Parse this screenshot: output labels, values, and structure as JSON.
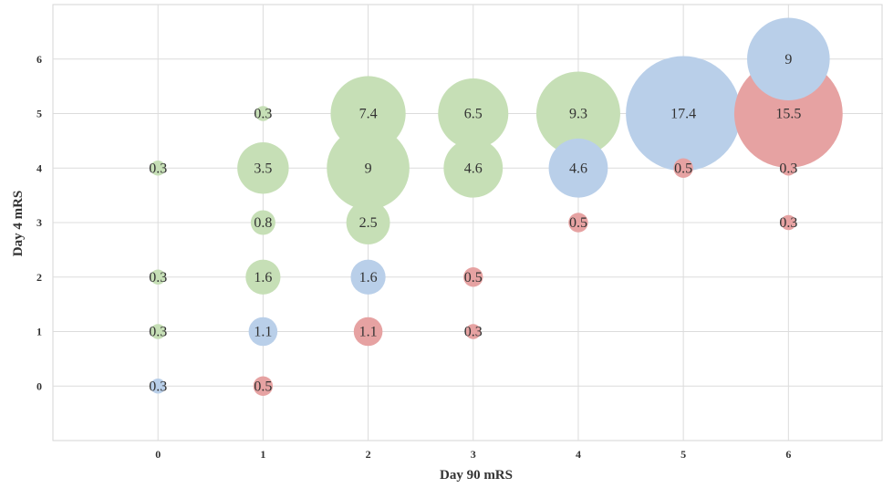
{
  "chart_data": {
    "type": "scatter",
    "subtype": "bubble",
    "title": "",
    "xlabel": "Day 90 mRS",
    "ylabel": "Day 4 mRS",
    "xlim": [
      -1,
      6.9
    ],
    "ylim": [
      -1,
      7
    ],
    "xticks": [
      "0",
      "1",
      "2",
      "3",
      "4",
      "5",
      "6"
    ],
    "yticks": [
      "0",
      "1",
      "2",
      "3",
      "4",
      "5",
      "6"
    ],
    "grid": true,
    "legend": "none",
    "colors": {
      "green": "#c6dfb6",
      "blue": "#b9cfe9",
      "red": "#e6a2a2"
    },
    "points": [
      {
        "x": 0,
        "y": 0,
        "value": 0.3,
        "label": "0.3",
        "color": "blue"
      },
      {
        "x": 0,
        "y": 1,
        "value": 0.3,
        "label": "0.3",
        "color": "green"
      },
      {
        "x": 0,
        "y": 2,
        "value": 0.3,
        "label": "0.3",
        "color": "green"
      },
      {
        "x": 0,
        "y": 4,
        "value": 0.3,
        "label": "0.3",
        "color": "green"
      },
      {
        "x": 1,
        "y": 0,
        "value": 0.5,
        "label": "0.5",
        "color": "red"
      },
      {
        "x": 1,
        "y": 1,
        "value": 1.1,
        "label": "1.1",
        "color": "blue"
      },
      {
        "x": 1,
        "y": 2,
        "value": 1.6,
        "label": "1.6",
        "color": "green"
      },
      {
        "x": 1,
        "y": 3,
        "value": 0.8,
        "label": "0.8",
        "color": "green"
      },
      {
        "x": 1,
        "y": 4,
        "value": 3.5,
        "label": "3.5",
        "color": "green"
      },
      {
        "x": 1,
        "y": 5,
        "value": 0.3,
        "label": "0.3",
        "color": "green"
      },
      {
        "x": 2,
        "y": 1,
        "value": 1.1,
        "label": "1.1",
        "color": "red"
      },
      {
        "x": 2,
        "y": 2,
        "value": 1.6,
        "label": "1.6",
        "color": "blue"
      },
      {
        "x": 2,
        "y": 3,
        "value": 2.5,
        "label": "2.5",
        "color": "green"
      },
      {
        "x": 2,
        "y": 4,
        "value": 9,
        "label": "9",
        "color": "green"
      },
      {
        "x": 2,
        "y": 5,
        "value": 7.4,
        "label": "7.4",
        "color": "green"
      },
      {
        "x": 3,
        "y": 1,
        "value": 0.3,
        "label": "0.3",
        "color": "red"
      },
      {
        "x": 3,
        "y": 2,
        "value": 0.5,
        "label": "0.5",
        "color": "red"
      },
      {
        "x": 3,
        "y": 4,
        "value": 4.6,
        "label": "4.6",
        "color": "green"
      },
      {
        "x": 3,
        "y": 5,
        "value": 6.5,
        "label": "6.5",
        "color": "green"
      },
      {
        "x": 4,
        "y": 3,
        "value": 0.5,
        "label": "0.5",
        "color": "red"
      },
      {
        "x": 4,
        "y": 4,
        "value": 4.6,
        "label": "4.6",
        "color": "blue"
      },
      {
        "x": 4,
        "y": 5,
        "value": 9.3,
        "label": "9.3",
        "color": "green"
      },
      {
        "x": 5,
        "y": 4,
        "value": 0.5,
        "label": "0.5",
        "color": "red"
      },
      {
        "x": 5,
        "y": 5,
        "value": 17.4,
        "label": "17.4",
        "color": "blue"
      },
      {
        "x": 6,
        "y": 3,
        "value": 0.3,
        "label": "0.3",
        "color": "red"
      },
      {
        "x": 6,
        "y": 4,
        "value": 0.3,
        "label": "0.3",
        "color": "red"
      },
      {
        "x": 6,
        "y": 5,
        "value": 15.5,
        "label": "15.5",
        "color": "red"
      },
      {
        "x": 6,
        "y": 6,
        "value": 9,
        "label": "9",
        "color": "blue"
      }
    ]
  }
}
